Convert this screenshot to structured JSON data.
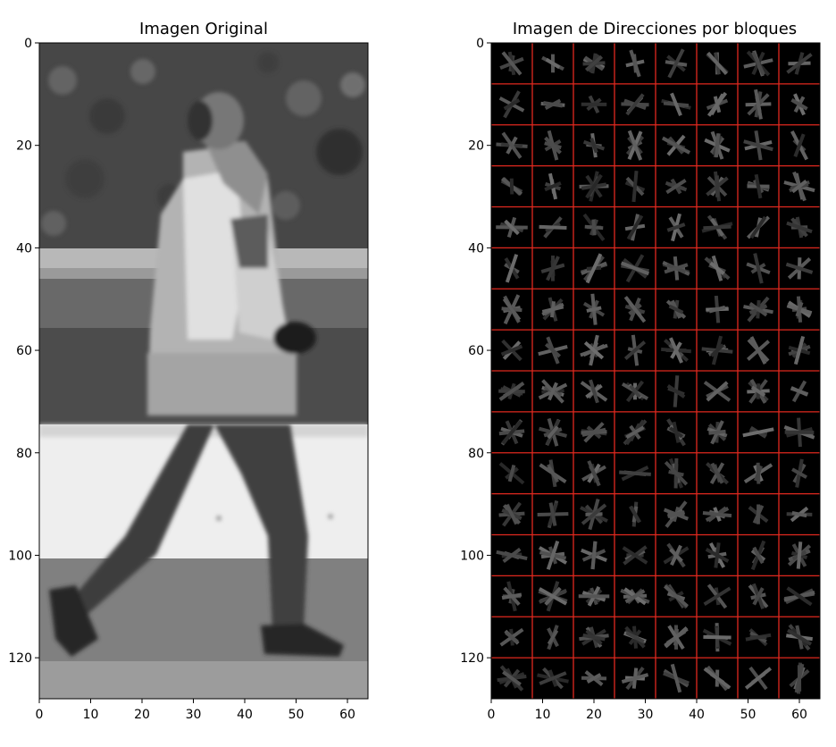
{
  "chart_data": [
    {
      "type": "image",
      "title": "Imagen Original",
      "xlim": [
        0,
        64
      ],
      "ylim": [
        128,
        0
      ],
      "xticks": [
        0,
        10,
        20,
        30,
        40,
        50,
        60
      ],
      "yticks": [
        0,
        20,
        40,
        60,
        80,
        100,
        120
      ],
      "colormap": "gray",
      "content": "grayscale photo of a walking pedestrian"
    },
    {
      "type": "heatmap",
      "title": "Imagen de Direcciones por bloques",
      "xlim": [
        0,
        64
      ],
      "ylim": [
        128,
        0
      ],
      "xticks": [
        0,
        10,
        20,
        30,
        40,
        50,
        60
      ],
      "yticks": [
        0,
        20,
        40,
        60,
        80,
        100,
        120
      ],
      "colormap": "gray",
      "block_size": 8,
      "grid_step": 8,
      "grid_color": "#e0281e",
      "grid": true
    }
  ]
}
